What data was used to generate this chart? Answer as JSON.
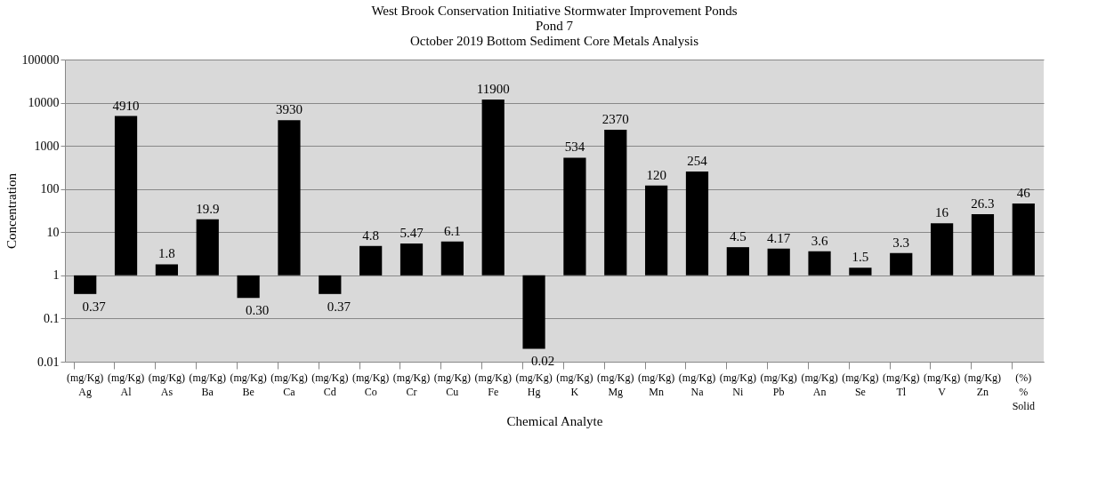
{
  "chart_data": {
    "type": "bar",
    "title": "West Brook Conservation Initiative Stormwater Improvement Ponds\nPond 7\nOctober 2019 Bottom Sediment  Core Metals Analysis",
    "xlabel": "Chemical Analyte",
    "ylabel": "Concentration",
    "categories": [
      "(mg/Kg)\nAg",
      "(mg/Kg)\nAl",
      "(mg/Kg)\nAs",
      "(mg/Kg)\nBa",
      "(mg/Kg)\nBe",
      "(mg/Kg)\nCa",
      "(mg/Kg)\nCd",
      "(mg/Kg)\nCo",
      "(mg/Kg)\nCr",
      "(mg/Kg)\nCu",
      "(mg/Kg)\nFe",
      "(mg/Kg)\nHg",
      "(mg/Kg)\nK",
      "(mg/Kg)\nMg",
      "(mg/Kg)\nMn",
      "(mg/Kg)\nNa",
      "(mg/Kg)\nNi",
      "(mg/Kg)\nPb",
      "(mg/Kg)\nAn",
      "(mg/Kg)\nSe",
      "(mg/Kg)\nTl",
      "(mg/Kg)\nV",
      "(mg/Kg)\nZn",
      "(%)\n%\nSolid"
    ],
    "base": [
      1,
      1,
      1,
      1,
      1,
      1,
      1,
      1,
      1,
      1,
      1,
      1,
      1,
      1,
      1,
      1,
      1,
      1,
      1,
      1,
      1,
      1,
      1,
      1
    ],
    "values": [
      -0.63,
      4909,
      0.8,
      18.9,
      -0.7,
      3929,
      -0.63,
      3.8,
      4.47,
      5.1,
      11899,
      -0.98,
      533,
      2369,
      119,
      253,
      3.5,
      3.17,
      2.6,
      0.5,
      2.3,
      15,
      25.3,
      45
    ],
    "value_labels": [
      "0.37",
      "4910",
      "1.8",
      "19.9",
      "0.30",
      "3930",
      "0.37",
      "4.8",
      "5.47",
      "6.1",
      "11900",
      "0.02",
      "534",
      "2370",
      "120",
      "254",
      "4.5",
      "4.17",
      "3.6",
      "1.5",
      "3.3",
      "16",
      "26.3",
      "46"
    ],
    "color": "#000000",
    "log": true,
    "ylim": [
      0.01,
      100000
    ],
    "yticks": [
      0.01,
      0.1,
      1,
      10,
      100,
      1000,
      10000,
      100000
    ],
    "grid": "y"
  }
}
